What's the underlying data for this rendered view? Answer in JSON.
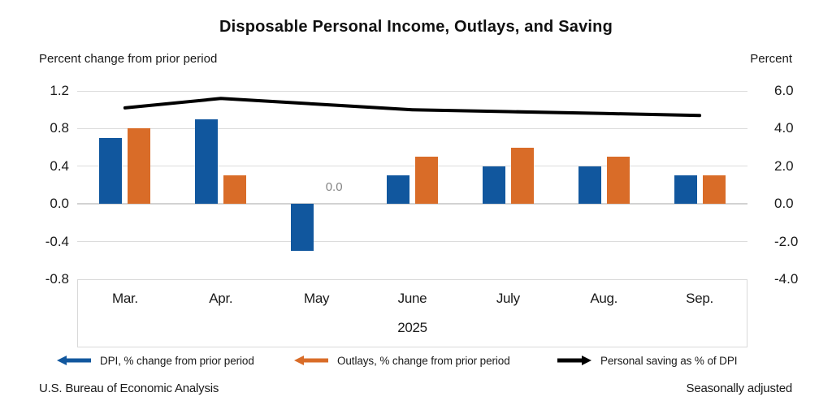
{
  "title": "Disposable Personal Income, Outlays, and Saving",
  "left_axis_title": "Percent change from prior period",
  "right_axis_title": "Percent",
  "footer": {
    "source": "U.S. Bureau of Economic Analysis",
    "note": "Seasonally adjusted"
  },
  "colors": {
    "dpi_bar": "#11579E",
    "outlays_bar": "#D96C28",
    "saving_line": "#000000",
    "grid": "#DCDCDC",
    "annotation_text": "#848484"
  },
  "legend": [
    {
      "label": "DPI, % change from prior period",
      "marker": "left-arrow",
      "color": "#11579E"
    },
    {
      "label": "Outlays, % change from prior period",
      "marker": "left-arrow",
      "color": "#D96C28"
    },
    {
      "label": "Personal saving as % of DPI",
      "marker": "right-arrow",
      "color": "#000000"
    }
  ],
  "chart_data": {
    "type": "bar",
    "subtype": "grouped bars with overlay line",
    "categories": [
      "Mar.",
      "Apr.",
      "May",
      "June",
      "July",
      "Aug.",
      "Sep."
    ],
    "x_axis_year": "2025",
    "series": [
      {
        "name": "DPI, % change from prior period",
        "type": "bar",
        "axis": "left",
        "values": [
          0.7,
          0.9,
          -0.5,
          0.3,
          0.4,
          0.4,
          0.3
        ]
      },
      {
        "name": "Outlays, % change from prior period",
        "type": "bar",
        "axis": "left",
        "values": [
          0.8,
          0.3,
          0.0,
          0.5,
          0.6,
          0.5,
          0.3
        ]
      },
      {
        "name": "Personal saving as % of DPI",
        "type": "line",
        "axis": "right",
        "values": [
          5.1,
          5.6,
          5.3,
          5.0,
          4.9,
          4.8,
          4.7
        ]
      }
    ],
    "left_axis": {
      "title": "Percent change from prior period",
      "tick_labels": [
        "1.2",
        "0.8",
        "0.4",
        "0.0",
        "-0.4",
        "-0.8"
      ],
      "min": -0.8,
      "max": 1.2
    },
    "right_axis": {
      "title": "Percent",
      "tick_labels": [
        "6.0",
        "4.0",
        "2.0",
        "0.0",
        "-2.0",
        "-4.0"
      ],
      "min": -4.0,
      "max": 6.0
    },
    "annotations": [
      {
        "text": "0.0",
        "series": "Outlays, % change from prior period",
        "category": "May"
      }
    ],
    "grid": true,
    "legend_position": "bottom",
    "title": "Disposable Personal Income, Outlays, and Saving"
  }
}
